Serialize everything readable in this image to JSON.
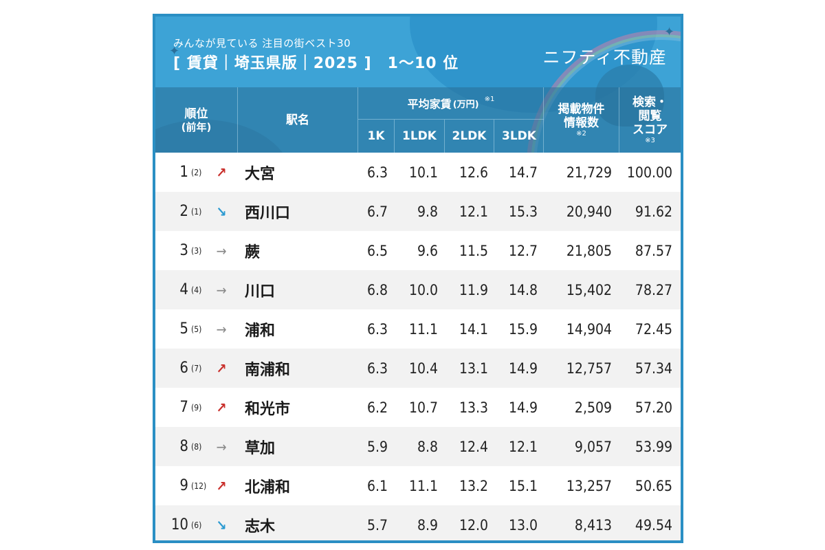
{
  "banner": {
    "subtitle": "みんなが見ている 注目の街ベスト30",
    "title": "[ 賃貸｜埼玉県版｜2025 ]　1〜10 位",
    "brand": "ニフティ不動産"
  },
  "colors": {
    "frame": "#2a8fc4",
    "banner_bg": "#3da3d6",
    "trend_up": "#c9302c",
    "trend_down": "#2b9ad1",
    "trend_same": "#8a8a8a",
    "row_alt": "#f2f2f2"
  },
  "table": {
    "headers": {
      "rank": "順位",
      "rank_prev": "(前年)",
      "station": "駅名",
      "rent_group": "平均家賃",
      "rent_unit": "(万円)",
      "rent_note": "※1",
      "rent_cols": [
        "1K",
        "1LDK",
        "2LDK",
        "3LDK"
      ],
      "listings_line1": "掲載物件",
      "listings_line2": "情報数",
      "listings_note": "※2",
      "score_line1": "検索・",
      "score_line2": "閲覧",
      "score_line3": "スコア",
      "score_note": "※3"
    },
    "rows": [
      {
        "rank": "1",
        "prev": "(2)",
        "trend": "up",
        "trend_icon": "↗",
        "station": "大宮",
        "k1": "6.3",
        "ldk1": "10.1",
        "ldk2": "12.6",
        "ldk3": "14.7",
        "listings": "21,729",
        "score": "100.00"
      },
      {
        "rank": "2",
        "prev": "(1)",
        "trend": "down",
        "trend_icon": "↘",
        "station": "西川口",
        "k1": "6.7",
        "ldk1": "9.8",
        "ldk2": "12.1",
        "ldk3": "15.3",
        "listings": "20,940",
        "score": "91.62"
      },
      {
        "rank": "3",
        "prev": "(3)",
        "trend": "same",
        "trend_icon": "→",
        "station": "蕨",
        "k1": "6.5",
        "ldk1": "9.6",
        "ldk2": "11.5",
        "ldk3": "12.7",
        "listings": "21,805",
        "score": "87.57"
      },
      {
        "rank": "4",
        "prev": "(4)",
        "trend": "same",
        "trend_icon": "→",
        "station": "川口",
        "k1": "6.8",
        "ldk1": "10.0",
        "ldk2": "11.9",
        "ldk3": "14.8",
        "listings": "15,402",
        "score": "78.27"
      },
      {
        "rank": "5",
        "prev": "(5)",
        "trend": "same",
        "trend_icon": "→",
        "station": "浦和",
        "k1": "6.3",
        "ldk1": "11.1",
        "ldk2": "14.1",
        "ldk3": "15.9",
        "listings": "14,904",
        "score": "72.45"
      },
      {
        "rank": "6",
        "prev": "(7)",
        "trend": "up",
        "trend_icon": "↗",
        "station": "南浦和",
        "k1": "6.3",
        "ldk1": "10.4",
        "ldk2": "13.1",
        "ldk3": "14.9",
        "listings": "12,757",
        "score": "57.34"
      },
      {
        "rank": "7",
        "prev": "(9)",
        "trend": "up",
        "trend_icon": "↗",
        "station": "和光市",
        "k1": "6.2",
        "ldk1": "10.7",
        "ldk2": "13.3",
        "ldk3": "14.9",
        "listings": "2,509",
        "score": "57.20"
      },
      {
        "rank": "8",
        "prev": "(8)",
        "trend": "same",
        "trend_icon": "→",
        "station": "草加",
        "k1": "5.9",
        "ldk1": "8.8",
        "ldk2": "12.4",
        "ldk3": "12.1",
        "listings": "9,057",
        "score": "53.99"
      },
      {
        "rank": "9",
        "prev": "(12)",
        "trend": "up",
        "trend_icon": "↗",
        "station": "北浦和",
        "k1": "6.1",
        "ldk1": "11.1",
        "ldk2": "13.2",
        "ldk3": "15.1",
        "listings": "13,257",
        "score": "50.65"
      },
      {
        "rank": "10",
        "prev": "(6)",
        "trend": "down",
        "trend_icon": "↘",
        "station": "志木",
        "k1": "5.7",
        "ldk1": "8.9",
        "ldk2": "12.0",
        "ldk3": "13.0",
        "listings": "8,413",
        "score": "49.54"
      }
    ]
  }
}
